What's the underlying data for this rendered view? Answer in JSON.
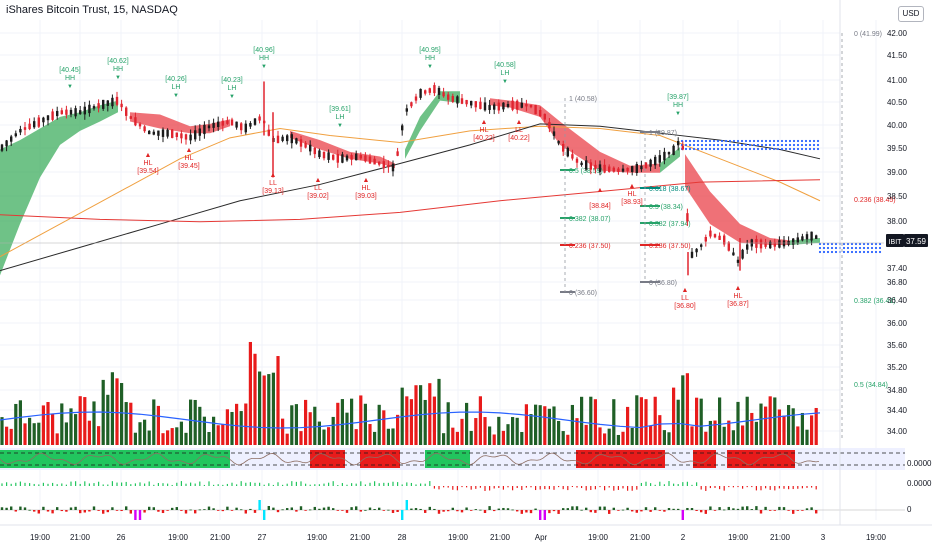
{
  "header": {
    "title": "iShares Bitcoin Trust, 15, NASDAQ",
    "currency": "USD"
  },
  "last_price": {
    "ticker": "IBIT",
    "value": "37.59"
  },
  "indicator_values": {
    "osc1": "0.0000",
    "osc2": "0.0000",
    "osc3": "0"
  },
  "chart_data": {
    "type": "candlestick",
    "title": "iShares Bitcoin Trust, 15, NASDAQ",
    "y_axis": {
      "ticks": [
        "42.00",
        "41.50",
        "41.00",
        "40.50",
        "40.00",
        "39.50",
        "39.00",
        "38.50",
        "38.00",
        "37.40",
        "36.80",
        "36.40",
        "36.00",
        "35.60",
        "35.20",
        "34.80",
        "34.40",
        "34.00"
      ],
      "range": [
        33.8,
        42.1
      ]
    },
    "x_axis": {
      "ticks": [
        "19:00",
        "21:00",
        "26",
        "19:00",
        "21:00",
        "27",
        "19:00",
        "21:00",
        "28",
        "19:00",
        "21:00",
        "Apr",
        "19:00",
        "21:00",
        "2",
        "19:00",
        "21:00",
        "3",
        "19:00"
      ]
    },
    "annotations": [
      {
        "label": "[40.45]",
        "tag": "HH",
        "color": "#26a269"
      },
      {
        "label": "[40.62]",
        "tag": "HH",
        "color": "#26a269"
      },
      {
        "label": "[40.26]",
        "tag": "LH",
        "color": "#26a269"
      },
      {
        "label": "[40.23]",
        "tag": "LH",
        "color": "#26a269"
      },
      {
        "label": "[40.96]",
        "tag": "HH",
        "color": "#26a269"
      },
      {
        "label": "[39.61]",
        "tag": "LH",
        "color": "#26a269"
      },
      {
        "label": "[40.95]",
        "tag": "HH",
        "color": "#26a269"
      },
      {
        "label": "[40.58]",
        "tag": "LH",
        "color": "#26a269"
      },
      {
        "label": "[39.87]",
        "tag": "HH",
        "color": "#26a269"
      },
      {
        "label": "[39.54]",
        "tag": "HL",
        "color": "#e02424"
      },
      {
        "label": "[39.45]",
        "tag": "HL",
        "color": "#e02424"
      },
      {
        "label": "[39.13]",
        "tag": "LL",
        "color": "#e02424"
      },
      {
        "label": "[39.02]",
        "tag": "LL",
        "color": "#e02424"
      },
      {
        "label": "[39.03]",
        "tag": "HL",
        "color": "#e02424"
      },
      {
        "label": "[40.22]",
        "tag": "HL",
        "color": "#e02424"
      },
      {
        "label": "[40.22]",
        "tag": "LL",
        "color": "#e02424"
      },
      {
        "label": "[38.84]",
        "tag": "",
        "color": "#e02424"
      },
      {
        "label": "[38.93]",
        "tag": "HL",
        "color": "#e02424"
      },
      {
        "label": "[36.80]",
        "tag": "LL",
        "color": "#e02424"
      },
      {
        "label": "[36.87]",
        "tag": "HL",
        "color": "#e02424"
      }
    ],
    "fib_levels": [
      {
        "label": "1 (40.58)",
        "color": "#787b86"
      },
      {
        "label": "0.5 (38.59)",
        "color": "#26a269"
      },
      {
        "label": "0.382 (38.07)",
        "color": "#26a269"
      },
      {
        "label": "0.236 (37.50)",
        "color": "#e02424"
      },
      {
        "label": "0 (36.60)",
        "color": "#787b86"
      },
      {
        "label": "1 (39.87)",
        "color": "#787b86"
      },
      {
        "label": "0.618 (38.67)",
        "color": "#00897b"
      },
      {
        "label": "0.5 (38.34)",
        "color": "#26a269"
      },
      {
        "label": "0.382 (37.94)",
        "color": "#26a269"
      },
      {
        "label": "0.236 (37.50)",
        "color": "#e02424"
      },
      {
        "label": "0 (36.80)",
        "color": "#787b86"
      },
      {
        "label": "0 (41.99)",
        "color": "#787b86"
      },
      {
        "label": "0.236 (38.45)",
        "color": "#e02424"
      },
      {
        "label": "0.382 (36.41)",
        "color": "#26a269"
      },
      {
        "label": "0.5 (34.84)",
        "color": "#26a269"
      }
    ]
  }
}
